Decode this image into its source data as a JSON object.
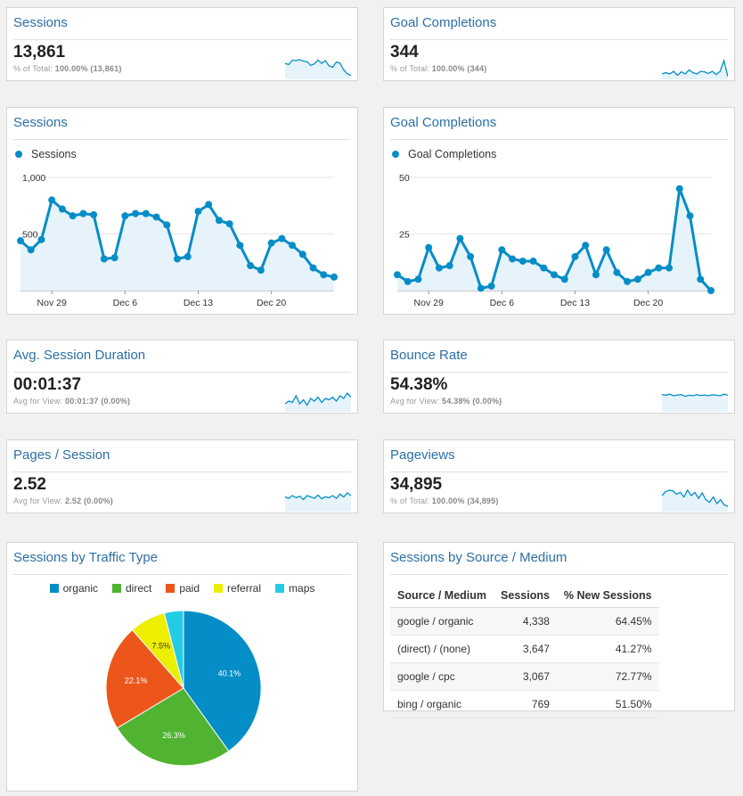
{
  "colors": {
    "accent": "#058dc7",
    "area": "#e6f3fb",
    "title": "#2c6fa5"
  },
  "cards": {
    "sessions_metric": {
      "title": "Sessions",
      "value": "13,861",
      "sub_label": "% of Total:",
      "sub_value": "100.00% (13,861)"
    },
    "goal_metric": {
      "title": "Goal Completions",
      "value": "344",
      "sub_label": "% of Total:",
      "sub_value": "100.00% (344)"
    },
    "duration_metric": {
      "title": "Avg. Session Duration",
      "value": "00:01:37",
      "sub_label": "Avg for View:",
      "sub_value": "00:01:37 (0.00%)"
    },
    "bounce_metric": {
      "title": "Bounce Rate",
      "value": "54.38%",
      "sub_label": "Avg for View:",
      "sub_value": "54.38% (0.00%)"
    },
    "pages_metric": {
      "title": "Pages / Session",
      "value": "2.52",
      "sub_label": "Avg for View:",
      "sub_value": "2.52 (0.00%)"
    },
    "pageviews_metric": {
      "title": "Pageviews",
      "value": "34,895",
      "sub_label": "% of Total:",
      "sub_value": "100.00% (34,895)"
    },
    "sessions_chart": {
      "title": "Sessions",
      "legend": "Sessions"
    },
    "goal_chart": {
      "title": "Goal Completions",
      "legend": "Goal Completions"
    },
    "traffic_pie": {
      "title": "Sessions by Traffic Type"
    },
    "source_table": {
      "title": "Sessions by Source / Medium",
      "headers": [
        "Source / Medium",
        "Sessions",
        "% New Sessions"
      ],
      "rows": [
        [
          "google / organic",
          "4,338",
          "64.45%"
        ],
        [
          "(direct) / (none)",
          "3,647",
          "41.27%"
        ],
        [
          "google / cpc",
          "3,067",
          "72.77%"
        ],
        [
          "bing / organic",
          "769",
          "51.50%"
        ]
      ]
    }
  },
  "chart_data": [
    {
      "type": "line",
      "series": [
        {
          "name": "Sessions",
          "values": [
            440,
            360,
            450,
            800,
            720,
            660,
            680,
            670,
            280,
            290,
            660,
            680,
            680,
            650,
            580,
            280,
            300,
            700,
            760,
            620,
            590,
            400,
            220,
            180,
            420,
            460,
            400,
            320,
            200,
            140,
            120
          ]
        }
      ],
      "x_ticks": [
        "Nov 29",
        "Dec 6",
        "Dec 13",
        "Dec 20"
      ],
      "y_ticks": [
        "1,000",
        "500"
      ],
      "ylim": [
        0,
        1000
      ]
    },
    {
      "type": "line",
      "series": [
        {
          "name": "Goal Completions",
          "values": [
            7,
            4,
            5,
            19,
            10,
            11,
            23,
            15,
            1,
            2,
            18,
            14,
            13,
            13,
            10,
            7,
            5,
            15,
            20,
            7,
            18,
            8,
            4,
            5,
            8,
            10,
            10,
            45,
            33,
            5,
            0
          ]
        }
      ],
      "x_ticks": [
        "Nov 29",
        "Dec 6",
        "Dec 13",
        "Dec 20"
      ],
      "y_ticks": [
        "50",
        "25"
      ],
      "ylim": [
        0,
        50
      ]
    },
    {
      "type": "pie",
      "slices": [
        {
          "label": "organic",
          "value": 40.1,
          "color": "#058dc7",
          "text": "40.1%"
        },
        {
          "label": "direct",
          "value": 26.3,
          "color": "#50b432",
          "text": "26.3%"
        },
        {
          "label": "paid",
          "value": 22.1,
          "color": "#ed561b",
          "text": "22.1%"
        },
        {
          "label": "referral",
          "value": 7.5,
          "color": "#edef00",
          "text": "7.5%"
        },
        {
          "label": "maps",
          "value": 4.0,
          "color": "#24cbe5",
          "text": ""
        }
      ]
    }
  ],
  "sparklines": {
    "sessions": [
      0.6,
      0.55,
      0.72,
      0.7,
      0.74,
      0.68,
      0.66,
      0.52,
      0.58,
      0.72,
      0.6,
      0.7,
      0.5,
      0.45,
      0.65,
      0.6,
      0.35,
      0.2,
      0.15
    ],
    "goal": [
      0.2,
      0.25,
      0.2,
      0.3,
      0.15,
      0.28,
      0.2,
      0.35,
      0.25,
      0.2,
      0.3,
      0.28,
      0.22,
      0.3,
      0.18,
      0.3,
      0.7,
      0.1
    ],
    "duration": [
      0.3,
      0.4,
      0.35,
      0.6,
      0.3,
      0.45,
      0.25,
      0.5,
      0.4,
      0.55,
      0.35,
      0.5,
      0.45,
      0.55,
      0.4,
      0.6,
      0.5,
      0.7,
      0.55
    ],
    "bounce": [
      0.65,
      0.62,
      0.66,
      0.6,
      0.63,
      0.64,
      0.58,
      0.62,
      0.6,
      0.64,
      0.61,
      0.63,
      0.6,
      0.64,
      0.62,
      0.6,
      0.66,
      0.62
    ],
    "pages": [
      0.55,
      0.5,
      0.6,
      0.52,
      0.58,
      0.45,
      0.6,
      0.55,
      0.5,
      0.62,
      0.48,
      0.56,
      0.52,
      0.6,
      0.5,
      0.66,
      0.55,
      0.7,
      0.6
    ],
    "pageviews": [
      0.6,
      0.75,
      0.8,
      0.78,
      0.65,
      0.72,
      0.55,
      0.8,
      0.6,
      0.72,
      0.5,
      0.7,
      0.45,
      0.35,
      0.55,
      0.3,
      0.45,
      0.25,
      0.2
    ]
  }
}
